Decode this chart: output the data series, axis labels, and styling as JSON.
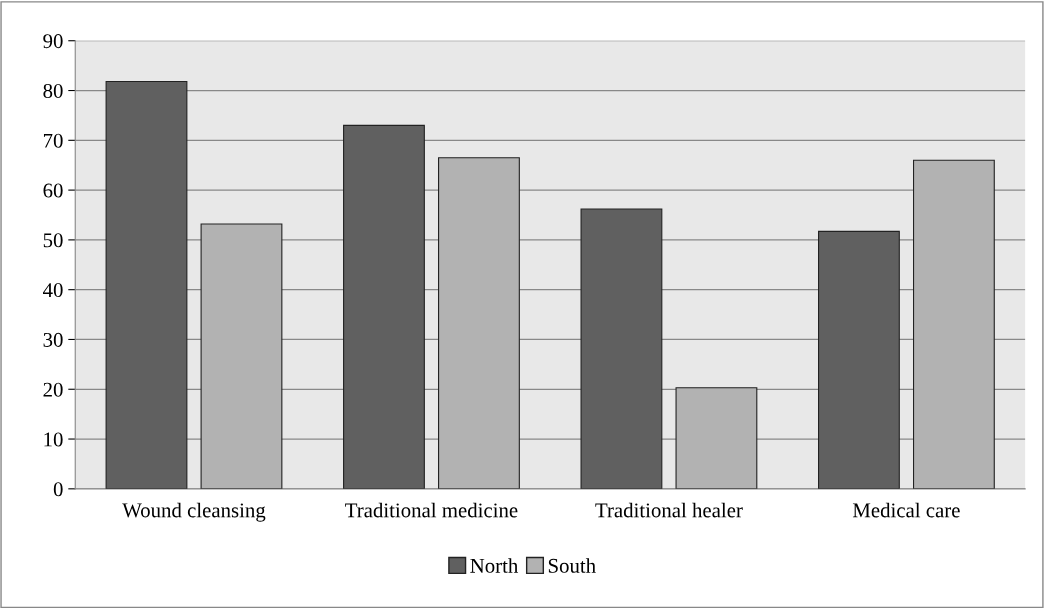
{
  "chart_data": {
    "type": "bar",
    "categories": [
      "Wound cleansing",
      "Traditional medicine",
      "Traditional healer",
      "Medical care"
    ],
    "series": [
      {
        "name": "North",
        "color": "#606060",
        "values": [
          81.8,
          73.0,
          56.2,
          51.7
        ]
      },
      {
        "name": "South",
        "color": "#b2b2b2",
        "values": [
          53.2,
          66.5,
          20.3,
          66.0
        ]
      }
    ],
    "ylim": [
      0,
      90
    ],
    "yticks": [
      0,
      10,
      20,
      30,
      40,
      50,
      60,
      70,
      80,
      90
    ],
    "grid": "y",
    "legend": "bottom"
  }
}
